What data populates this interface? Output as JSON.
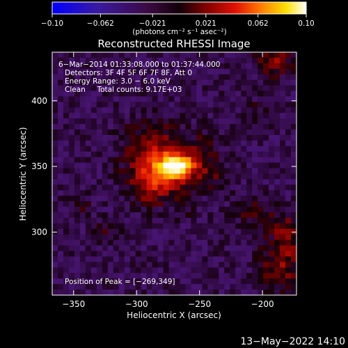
{
  "chart_data": {
    "type": "heatmap",
    "title": "Reconstructed RHESSI Image",
    "xlabel": "Heliocentric X (arcsec)",
    "ylabel": "Heliocentric Y (arcsec)",
    "xlim": [
      -367,
      -173
    ],
    "ylim": [
      252,
      437
    ],
    "x_ticks": [
      -350,
      -300,
      -250,
      -200
    ],
    "x_tick_labels": [
      "−350",
      "−300",
      "−250",
      "−200"
    ],
    "y_ticks": [
      300,
      350,
      400
    ],
    "y_tick_labels": [
      "300",
      "350",
      "400"
    ],
    "colorbar": {
      "range": [
        -0.1,
        0.1
      ],
      "tick_values": [
        -0.1,
        -0.062,
        -0.021,
        0.021,
        0.062,
        0.1
      ],
      "tick_labels": [
        "−0.10",
        "−0.062",
        "−0.021",
        "0.021",
        "0.062",
        "0.10"
      ],
      "units_label": "(photons cm⁻² s⁻¹ asec⁻²)",
      "colors": [
        "#0000ff",
        "#4b0082",
        "#1a0010",
        "#8b0000",
        "#ff2000",
        "#ff8c00",
        "#ffff00",
        "#ffffff"
      ]
    },
    "annotations": [
      "6−Mar−2014 01:33:08.000 to 01:37:44.000",
      "Detectors: 3F 4F 5F 6F 7F 8F, Att 0",
      "Energy Range: 3.0 − 6.0 keV",
      "Clean     Total counts: 9.17E+03"
    ],
    "peak_label": "Position of Peak = [−269,349]",
    "peak": {
      "x": -269,
      "y": 349,
      "value": 0.1
    },
    "sources": [
      {
        "x": -268,
        "y": 350,
        "sx": 9,
        "sy": 6,
        "amp": 0.085
      },
      {
        "x": -278,
        "y": 345,
        "sx": 16,
        "sy": 12,
        "amp": 0.035
      },
      {
        "x": -288,
        "y": 362,
        "sx": 16,
        "sy": 16,
        "amp": 0.03
      },
      {
        "x": -290,
        "y": 332,
        "sx": 10,
        "sy": 10,
        "amp": 0.02
      },
      {
        "x": -248,
        "y": 358,
        "sx": 10,
        "sy": 12,
        "amp": 0.02
      },
      {
        "x": -238,
        "y": 340,
        "sx": 8,
        "sy": 8,
        "amp": 0.012
      },
      {
        "x": -345,
        "y": 320,
        "sx": 6,
        "sy": 6,
        "amp": 0.018
      },
      {
        "x": -325,
        "y": 302,
        "sx": 8,
        "sy": 5,
        "amp": 0.015
      },
      {
        "x": -205,
        "y": 315,
        "sx": 10,
        "sy": 8,
        "amp": 0.02
      },
      {
        "x": -185,
        "y": 275,
        "sx": 12,
        "sy": 16,
        "amp": 0.028
      },
      {
        "x": -180,
        "y": 300,
        "sx": 8,
        "sy": 10,
        "amp": 0.022
      },
      {
        "x": -190,
        "y": 430,
        "sx": 10,
        "sy": 8,
        "amp": 0.03
      },
      {
        "x": -205,
        "y": 390,
        "sx": 6,
        "sy": 8,
        "amp": 0.012
      },
      {
        "x": -262,
        "y": 318,
        "sx": 6,
        "sy": 6,
        "amp": 0.01
      }
    ],
    "background": {
      "mean": -0.015,
      "noise": 0.012
    },
    "grid": false
  },
  "footer": {
    "timestamp": "13−May−2022 14:10"
  }
}
